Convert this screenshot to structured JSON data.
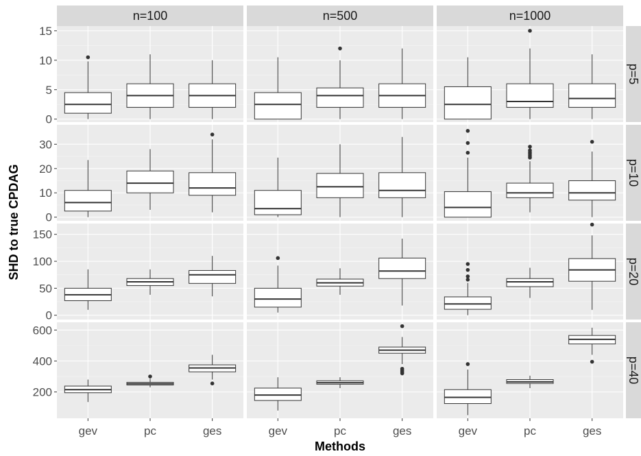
{
  "chart_data": {
    "type": "boxplot",
    "xlabel": "Methods",
    "ylabel": "SHD to true CPDAG",
    "categories": [
      "gev",
      "pc",
      "ges"
    ],
    "col_facets": [
      "n=100",
      "n=500",
      "n=1000"
    ],
    "row_facets": [
      {
        "label": "p=5",
        "ylim": [
          -0.5,
          15.8
        ],
        "ticks": [
          0,
          5,
          10,
          15
        ]
      },
      {
        "label": "p=10",
        "ylim": [
          -1.5,
          38
        ],
        "ticks": [
          0,
          10,
          20,
          30
        ]
      },
      {
        "label": "p=20",
        "ylim": [
          -8,
          170
        ],
        "ticks": [
          0,
          50,
          100,
          150
        ]
      },
      {
        "label": "p=40",
        "ylim": [
          30,
          650
        ],
        "ticks": [
          200,
          400,
          600
        ]
      }
    ],
    "panels": [
      [
        [
          {
            "method": "gev",
            "whisker_low": 0,
            "q1": 1,
            "median": 2.5,
            "q3": 4.5,
            "whisker_high": 9.8,
            "outliers": [
              10.5
            ]
          },
          {
            "method": "pc",
            "whisker_low": 0,
            "q1": 2,
            "median": 4,
            "q3": 6,
            "whisker_high": 11,
            "outliers": []
          },
          {
            "method": "ges",
            "whisker_low": 0,
            "q1": 2,
            "median": 4,
            "q3": 6,
            "whisker_high": 10,
            "outliers": []
          }
        ],
        [
          {
            "method": "gev",
            "whisker_low": 0,
            "q1": 0,
            "median": 2.5,
            "q3": 4.5,
            "whisker_high": 10.5,
            "outliers": []
          },
          {
            "method": "pc",
            "whisker_low": 0,
            "q1": 2,
            "median": 4,
            "q3": 5.3,
            "whisker_high": 10,
            "outliers": [
              12
            ]
          },
          {
            "method": "ges",
            "whisker_low": 0,
            "q1": 2,
            "median": 4,
            "q3": 6,
            "whisker_high": 12,
            "outliers": []
          }
        ],
        [
          {
            "method": "gev",
            "whisker_low": 0,
            "q1": 0,
            "median": 2.5,
            "q3": 5.5,
            "whisker_high": 10.5,
            "outliers": []
          },
          {
            "method": "pc",
            "whisker_low": 0,
            "q1": 2,
            "median": 3,
            "q3": 6,
            "whisker_high": 12,
            "outliers": [
              15
            ]
          },
          {
            "method": "ges",
            "whisker_low": 0,
            "q1": 2,
            "median": 3.5,
            "q3": 6,
            "whisker_high": 11,
            "outliers": []
          }
        ]
      ],
      [
        [
          {
            "method": "gev",
            "whisker_low": 0,
            "q1": 2.5,
            "median": 6,
            "q3": 11,
            "whisker_high": 23.5,
            "outliers": []
          },
          {
            "method": "pc",
            "whisker_low": 3,
            "q1": 10,
            "median": 14,
            "q3": 19,
            "whisker_high": 28,
            "outliers": []
          },
          {
            "method": "ges",
            "whisker_low": 2,
            "q1": 9,
            "median": 12,
            "q3": 18.3,
            "whisker_high": 32,
            "outliers": [
              34
            ]
          }
        ],
        [
          {
            "method": "gev",
            "whisker_low": 0,
            "q1": 1,
            "median": 3.5,
            "q3": 11,
            "whisker_high": 24.5,
            "outliers": []
          },
          {
            "method": "pc",
            "whisker_low": 0,
            "q1": 8,
            "median": 12.5,
            "q3": 18,
            "whisker_high": 30,
            "outliers": []
          },
          {
            "method": "ges",
            "whisker_low": 0,
            "q1": 8,
            "median": 11,
            "q3": 18.3,
            "whisker_high": 33,
            "outliers": []
          }
        ],
        [
          {
            "method": "gev",
            "whisker_low": 0,
            "q1": 0,
            "median": 4,
            "q3": 10.5,
            "whisker_high": 24.5,
            "outliers": [
              26.5,
              30.5,
              35.5
            ]
          },
          {
            "method": "pc",
            "whisker_low": 2,
            "q1": 8,
            "median": 10,
            "q3": 14,
            "whisker_high": 23,
            "outliers": [
              24.5,
              25.2,
              26,
              26.7,
              27.5,
              29
            ]
          },
          {
            "method": "ges",
            "whisker_low": 0,
            "q1": 7,
            "median": 10,
            "q3": 15,
            "whisker_high": 27,
            "outliers": [
              31
            ]
          }
        ]
      ],
      [
        [
          {
            "method": "gev",
            "whisker_low": 10,
            "q1": 27,
            "median": 38,
            "q3": 50,
            "whisker_high": 85,
            "outliers": []
          },
          {
            "method": "pc",
            "whisker_low": 38,
            "q1": 55,
            "median": 62,
            "q3": 68,
            "whisker_high": 85,
            "outliers": []
          },
          {
            "method": "ges",
            "whisker_low": 35,
            "q1": 59,
            "median": 75,
            "q3": 83,
            "whisker_high": 110,
            "outliers": []
          }
        ],
        [
          {
            "method": "gev",
            "whisker_low": 5,
            "q1": 15,
            "median": 30,
            "q3": 50,
            "whisker_high": 92,
            "outliers": [
              106
            ]
          },
          {
            "method": "pc",
            "whisker_low": 38,
            "q1": 54,
            "median": 60,
            "q3": 67,
            "whisker_high": 87,
            "outliers": []
          },
          {
            "method": "ges",
            "whisker_low": 18,
            "q1": 68,
            "median": 82,
            "q3": 106,
            "whisker_high": 142,
            "outliers": []
          }
        ],
        [
          {
            "method": "gev",
            "whisker_low": 0,
            "q1": 11,
            "median": 21,
            "q3": 34,
            "whisker_high": 60,
            "outliers": [
              66,
              72,
              84,
              95
            ]
          },
          {
            "method": "pc",
            "whisker_low": 32,
            "q1": 53,
            "median": 62,
            "q3": 68,
            "whisker_high": 88,
            "outliers": []
          },
          {
            "method": "ges",
            "whisker_low": 10,
            "q1": 63,
            "median": 84,
            "q3": 105,
            "whisker_high": 148,
            "outliers": [
              168
            ]
          }
        ]
      ],
      [
        [
          {
            "method": "gev",
            "whisker_low": 135,
            "q1": 195,
            "median": 215,
            "q3": 238,
            "whisker_high": 280,
            "outliers": []
          },
          {
            "method": "pc",
            "whisker_low": 230,
            "q1": 245,
            "median": 253,
            "q3": 262,
            "whisker_high": 285,
            "outliers": [
              300
            ]
          },
          {
            "method": "ges",
            "whisker_low": 280,
            "q1": 330,
            "median": 355,
            "q3": 375,
            "whisker_high": 440,
            "outliers": [
              255
            ]
          }
        ],
        [
          {
            "method": "gev",
            "whisker_low": 80,
            "q1": 145,
            "median": 180,
            "q3": 225,
            "whisker_high": 295,
            "outliers": []
          },
          {
            "method": "pc",
            "whisker_low": 225,
            "q1": 250,
            "median": 260,
            "q3": 272,
            "whisker_high": 295,
            "outliers": []
          },
          {
            "method": "ges",
            "whisker_low": 380,
            "q1": 450,
            "median": 470,
            "q3": 490,
            "whisker_high": 555,
            "outliers": [
              320,
              330,
              340,
              350,
              625
            ]
          }
        ],
        [
          {
            "method": "gev",
            "whisker_low": 50,
            "q1": 125,
            "median": 165,
            "q3": 215,
            "whisker_high": 345,
            "outliers": [
              380
            ]
          },
          {
            "method": "pc",
            "whisker_low": 225,
            "q1": 255,
            "median": 265,
            "q3": 280,
            "whisker_high": 305,
            "outliers": []
          },
          {
            "method": "ges",
            "whisker_low": 440,
            "q1": 510,
            "median": 540,
            "q3": 565,
            "whisker_high": 615,
            "outliers": [
              395
            ]
          }
        ]
      ]
    ]
  }
}
